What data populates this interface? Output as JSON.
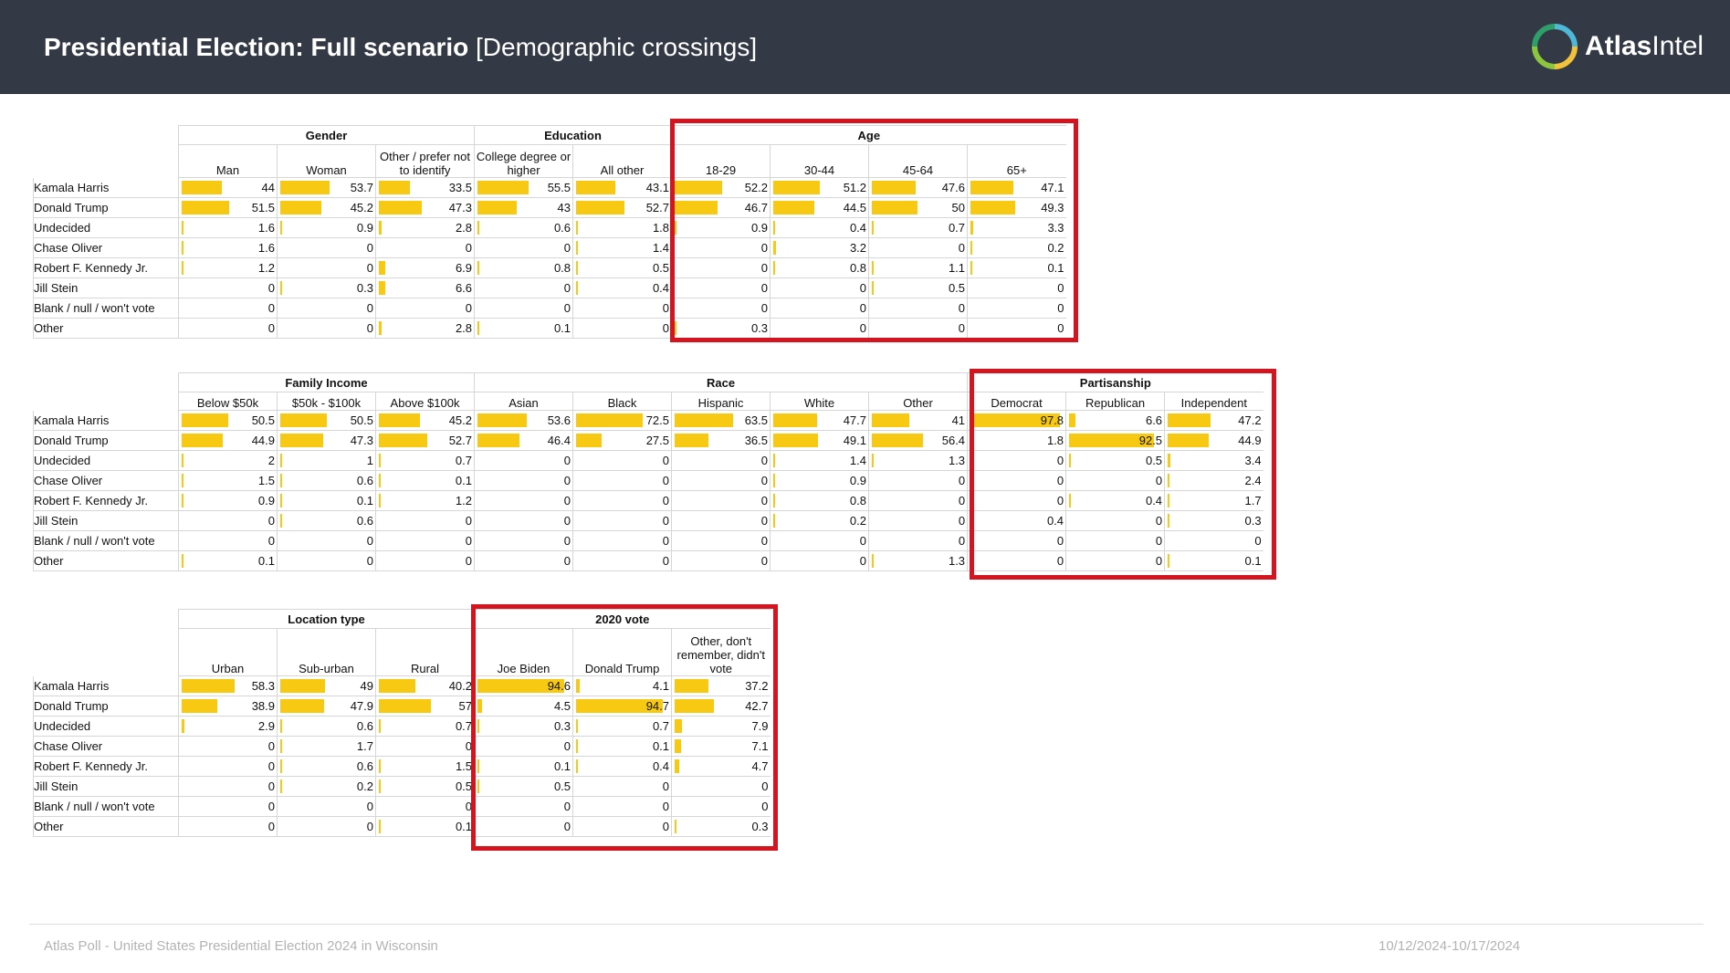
{
  "header": {
    "title_bold": "Presidential Election: Full scenario",
    "title_light": "[Demographic crossings]",
    "brand_bold": "Atlas",
    "brand_light": "Intel"
  },
  "colors": {
    "header_bg": "#333a45",
    "bar": "#f7c912",
    "highlight": "#d4141f"
  },
  "rows": [
    "Kamala Harris",
    "Donald Trump",
    "Undecided",
    "Chase Oliver",
    "Robert F. Kennedy Jr.",
    "Jill Stein",
    "Blank / null / won't vote",
    "Other"
  ],
  "tables": [
    {
      "id": "t1",
      "groups": [
        {
          "label": "Gender",
          "columns": [
            {
              "label": "Man",
              "values": [
                44,
                51.5,
                1.6,
                1.6,
                1.2,
                0,
                0,
                0
              ]
            },
            {
              "label": "Woman",
              "values": [
                53.7,
                45.2,
                0.9,
                0,
                0,
                0.3,
                0,
                0
              ]
            },
            {
              "label": "Other / prefer not to identify",
              "values": [
                33.5,
                47.3,
                2.8,
                0,
                6.9,
                6.6,
                0,
                2.8
              ]
            }
          ]
        },
        {
          "label": "Education",
          "columns": [
            {
              "label": "College degree or higher",
              "values": [
                55.5,
                43,
                0.6,
                0,
                0.8,
                0,
                0,
                0.1
              ]
            },
            {
              "label": "All other",
              "values": [
                43.1,
                52.7,
                1.8,
                1.4,
                0.5,
                0.4,
                0,
                0
              ]
            }
          ]
        },
        {
          "label": "Age",
          "columns": [
            {
              "label": "18-29",
              "values": [
                52.2,
                46.7,
                0.9,
                0,
                0,
                0,
                0,
                0.3
              ]
            },
            {
              "label": "30-44",
              "values": [
                51.2,
                44.5,
                0.4,
                3.2,
                0.8,
                0,
                0,
                0
              ]
            },
            {
              "label": "45-64",
              "values": [
                47.6,
                50,
                0.7,
                0,
                1.1,
                0.5,
                0,
                0
              ]
            },
            {
              "label": "65+",
              "values": [
                47.1,
                49.3,
                3.3,
                0.2,
                0.1,
                0,
                0,
                0
              ]
            }
          ]
        }
      ]
    },
    {
      "id": "t2",
      "groups": [
        {
          "label": "Family Income",
          "columns": [
            {
              "label": "Below $50k",
              "values": [
                50.5,
                44.9,
                2,
                1.5,
                0.9,
                0,
                0,
                0.1
              ]
            },
            {
              "label": "$50k - $100k",
              "values": [
                50.5,
                47.3,
                1,
                0.6,
                0.1,
                0.6,
                0,
                0
              ]
            },
            {
              "label": "Above $100k",
              "values": [
                45.2,
                52.7,
                0.7,
                0.1,
                1.2,
                0,
                0,
                0
              ]
            }
          ]
        },
        {
          "label": "Race",
          "columns": [
            {
              "label": "Asian",
              "values": [
                53.6,
                46.4,
                0,
                0,
                0,
                0,
                0,
                0
              ]
            },
            {
              "label": "Black",
              "values": [
                72.5,
                27.5,
                0,
                0,
                0,
                0,
                0,
                0
              ]
            },
            {
              "label": "Hispanic",
              "values": [
                63.5,
                36.5,
                0,
                0,
                0,
                0,
                0,
                0
              ]
            },
            {
              "label": "White",
              "values": [
                47.7,
                49.1,
                1.4,
                0.9,
                0.8,
                0.2,
                0,
                0
              ]
            },
            {
              "label": "Other",
              "values": [
                41,
                56.4,
                1.3,
                0,
                0,
                0,
                0,
                1.3
              ]
            }
          ]
        },
        {
          "label": "Partisanship",
          "columns": [
            {
              "label": "Democrat",
              "values": [
                97.8,
                1.8,
                0,
                0,
                0,
                0.4,
                0,
                0
              ]
            },
            {
              "label": "Republican",
              "values": [
                6.6,
                92.5,
                0.5,
                0,
                0.4,
                0,
                0,
                0
              ]
            },
            {
              "label": "Independent",
              "values": [
                47.2,
                44.9,
                3.4,
                2.4,
                1.7,
                0.3,
                0,
                0.1
              ]
            }
          ]
        }
      ]
    },
    {
      "id": "t3",
      "groups": [
        {
          "label": "Location type",
          "columns": [
            {
              "label": "Urban",
              "values": [
                58.3,
                38.9,
                2.9,
                0,
                0,
                0,
                0,
                0
              ]
            },
            {
              "label": "Sub-urban",
              "values": [
                49,
                47.9,
                0.6,
                1.7,
                0.6,
                0.2,
                0,
                0
              ]
            },
            {
              "label": "Rural",
              "values": [
                40.2,
                57,
                0.7,
                0,
                1.5,
                0.5,
                0,
                0.1
              ]
            }
          ]
        },
        {
          "label": "2020 vote",
          "columns": [
            {
              "label": "Joe Biden",
              "values": [
                94.6,
                4.5,
                0.3,
                0,
                0.1,
                0.5,
                0,
                0
              ]
            },
            {
              "label": "Donald Trump",
              "values": [
                4.1,
                94.7,
                0.7,
                0.1,
                0.4,
                0,
                0,
                0
              ]
            },
            {
              "label": "Other, don't remember, didn't vote",
              "values": [
                37.2,
                42.7,
                7.9,
                7.1,
                4.7,
                0,
                0,
                0.3
              ]
            }
          ]
        }
      ]
    }
  ],
  "footer": {
    "left": "Atlas Poll - United States Presidential Election 2024 in Wisconsin",
    "right": "10/12/2024-10/17/2024"
  }
}
